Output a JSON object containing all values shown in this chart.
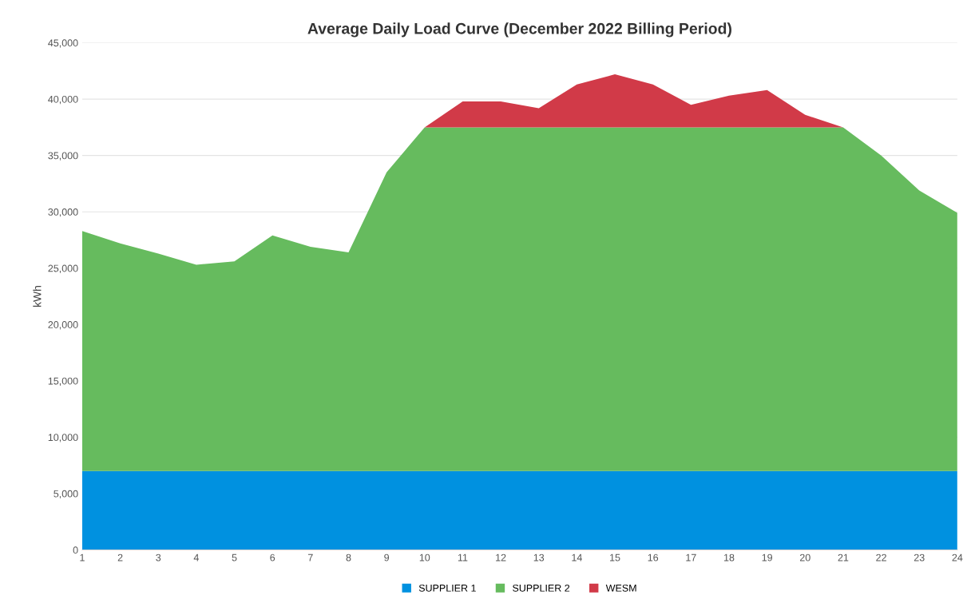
{
  "chart_data": {
    "type": "area",
    "stacked": true,
    "title": "Average Daily Load Curve (December 2022 Billing Period)",
    "ylabel": "kWh",
    "categories": [
      "1",
      "2",
      "3",
      "4",
      "5",
      "6",
      "7",
      "8",
      "9",
      "10",
      "11",
      "12",
      "13",
      "14",
      "15",
      "16",
      "17",
      "18",
      "19",
      "20",
      "21",
      "22",
      "23",
      "24"
    ],
    "series": [
      {
        "name": "SUPPLIER 1",
        "color": "#0091e0",
        "values": [
          7000,
          7000,
          7000,
          7000,
          7000,
          7000,
          7000,
          7000,
          7000,
          7000,
          7000,
          7000,
          7000,
          7000,
          7000,
          7000,
          7000,
          7000,
          7000,
          7000,
          7000,
          7000,
          7000,
          7000
        ]
      },
      {
        "name": "SUPPLIER 2",
        "color": "#66bb5e",
        "values": [
          21300,
          20200,
          19300,
          18300,
          18600,
          20900,
          19900,
          19400,
          26500,
          30500,
          30500,
          30500,
          30500,
          30500,
          30500,
          30500,
          30500,
          30500,
          30500,
          30500,
          30500,
          28000,
          24900,
          22900
        ]
      },
      {
        "name": "WESM",
        "color": "#d13a48",
        "values": [
          0,
          0,
          0,
          0,
          0,
          0,
          0,
          0,
          0,
          0,
          2300,
          2300,
          1700,
          3800,
          4700,
          3800,
          2000,
          2800,
          3300,
          1100,
          0,
          0,
          0,
          0
        ]
      }
    ],
    "ylim": [
      0,
      45000
    ],
    "yticks": [
      {
        "value": 0,
        "label": "0"
      },
      {
        "value": 5000,
        "label": "5,000"
      },
      {
        "value": 10000,
        "label": "10,000"
      },
      {
        "value": 15000,
        "label": "15,000"
      },
      {
        "value": 20000,
        "label": "20,000"
      },
      {
        "value": 25000,
        "label": "25,000"
      },
      {
        "value": 30000,
        "label": "30,000"
      },
      {
        "value": 35000,
        "label": "35,000"
      },
      {
        "value": 40000,
        "label": "40,000"
      },
      {
        "value": 45000,
        "label": "45,000"
      }
    ],
    "grid": "y",
    "legend": "bottom"
  }
}
